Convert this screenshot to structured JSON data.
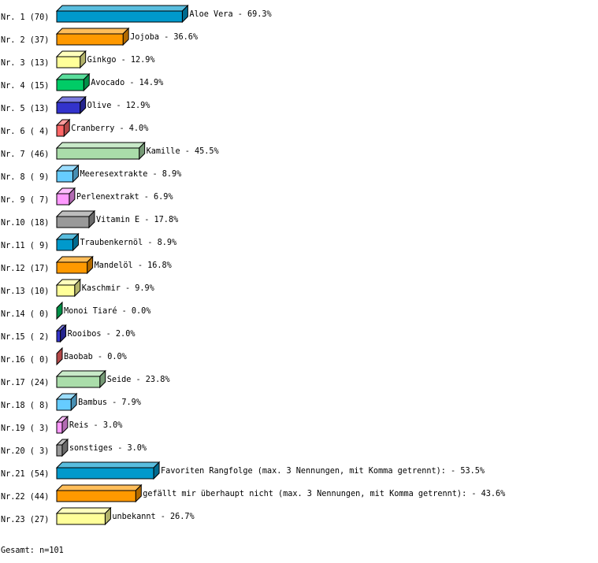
{
  "chart_data": {
    "type": "bar",
    "orientation": "horizontal",
    "style": "3d",
    "rows": [
      {
        "rank": "Nr. 1 (70)",
        "label": "Aloe Vera -  69.3%",
        "category": "Aloe Vera",
        "value": 69.3,
        "count": 70,
        "color": "#0099cc"
      },
      {
        "rank": "Nr. 2 (37)",
        "label": "Jojoba -  36.6%",
        "category": "Jojoba",
        "value": 36.6,
        "count": 37,
        "color": "#ff9900"
      },
      {
        "rank": "Nr. 3 (13)",
        "label": "Ginkgo -  12.9%",
        "category": "Ginkgo",
        "value": 12.9,
        "count": 13,
        "color": "#ffff99"
      },
      {
        "rank": "Nr. 4 (15)",
        "label": "Avocado -  14.9%",
        "category": "Avocado",
        "value": 14.9,
        "count": 15,
        "color": "#00cc66"
      },
      {
        "rank": "Nr. 5 (13)",
        "label": "Olive -  12.9%",
        "category": "Olive",
        "value": 12.9,
        "count": 13,
        "color": "#3333cc"
      },
      {
        "rank": "Nr. 6 ( 4)",
        "label": "Cranberry -   4.0%",
        "category": "Cranberry",
        "value": 4.0,
        "count": 4,
        "color": "#ff6666"
      },
      {
        "rank": "Nr. 7 (46)",
        "label": "Kamille -  45.5%",
        "category": "Kamille",
        "value": 45.5,
        "count": 46,
        "color": "#aaddaa"
      },
      {
        "rank": "Nr. 8 ( 9)",
        "label": "Meeresextrakte -   8.9%",
        "category": "Meeresextrakte",
        "value": 8.9,
        "count": 9,
        "color": "#66ccff"
      },
      {
        "rank": "Nr. 9 ( 7)",
        "label": "Perlenextrakt -   6.9%",
        "category": "Perlenextrakt",
        "value": 6.9,
        "count": 7,
        "color": "#ff99ff"
      },
      {
        "rank": "Nr.10 (18)",
        "label": "Vitamin E -  17.8%",
        "category": "Vitamin E",
        "value": 17.8,
        "count": 18,
        "color": "#999999"
      },
      {
        "rank": "Nr.11 ( 9)",
        "label": "Traubenkernöl -   8.9%",
        "category": "Traubenkernöl",
        "value": 8.9,
        "count": 9,
        "color": "#0099cc"
      },
      {
        "rank": "Nr.12 (17)",
        "label": "Mandelöl -  16.8%",
        "category": "Mandelöl",
        "value": 16.8,
        "count": 17,
        "color": "#ff9900"
      },
      {
        "rank": "Nr.13 (10)",
        "label": "Kaschmir -   9.9%",
        "category": "Kaschmir",
        "value": 9.9,
        "count": 10,
        "color": "#ffff99"
      },
      {
        "rank": "Nr.14 ( 0)",
        "label": "Monoi Tiaré -   0.0%",
        "category": "Monoi Tiaré",
        "value": 0.0,
        "count": 0,
        "color": "#00cc66"
      },
      {
        "rank": "Nr.15 ( 2)",
        "label": "Rooibos -   2.0%",
        "category": "Rooibos",
        "value": 2.0,
        "count": 2,
        "color": "#3333cc"
      },
      {
        "rank": "Nr.16 ( 0)",
        "label": "Baobab -   0.0%",
        "category": "Baobab",
        "value": 0.0,
        "count": 0,
        "color": "#ff6666"
      },
      {
        "rank": "Nr.17 (24)",
        "label": "Seide -  23.8%",
        "category": "Seide",
        "value": 23.8,
        "count": 24,
        "color": "#aaddaa"
      },
      {
        "rank": "Nr.18 ( 8)",
        "label": "Bambus -   7.9%",
        "category": "Bambus",
        "value": 7.9,
        "count": 8,
        "color": "#66ccff"
      },
      {
        "rank": "Nr.19 ( 3)",
        "label": "Reis -   3.0%",
        "category": "Reis",
        "value": 3.0,
        "count": 3,
        "color": "#ff99ff"
      },
      {
        "rank": "Nr.20 ( 3)",
        "label": "sonstiges -   3.0%",
        "category": "sonstiges",
        "value": 3.0,
        "count": 3,
        "color": "#999999"
      },
      {
        "rank": "Nr.21 (54)",
        "label": "Favoriten Rangfolge (max. 3 Nennungen, mit Komma getrennt): -  53.5%",
        "category": "Favoriten Rangfolge (max. 3 Nennungen, mit Komma getrennt):",
        "value": 53.5,
        "count": 54,
        "color": "#0099cc"
      },
      {
        "rank": "Nr.22 (44)",
        "label": "gefällt mir überhaupt nicht (max. 3 Nennungen, mit Komma getrennt): -  43.6%",
        "category": "gefällt mir überhaupt nicht (max. 3 Nennungen, mit Komma getrennt):",
        "value": 43.6,
        "count": 44,
        "color": "#ff9900"
      },
      {
        "rank": "Nr.23 (27)",
        "label": "unbekannt -  26.7%",
        "category": "unbekannt",
        "value": 26.7,
        "count": 27,
        "color": "#ffff99"
      }
    ],
    "total": "Gesamt: n=101"
  }
}
